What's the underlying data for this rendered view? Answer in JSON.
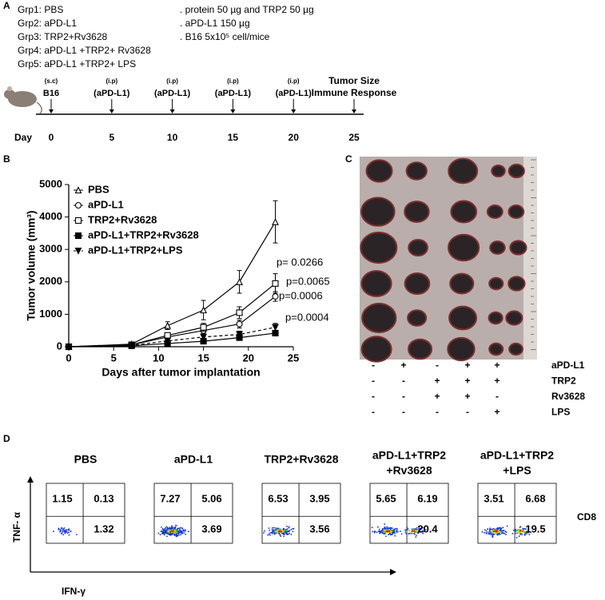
{
  "panel_a": {
    "label": "A",
    "groups": [
      "Grp1: PBS",
      "Grp2: aPD-L1",
      "Grp3: TRP2+Rv3628",
      "Grp4:  aPD-L1 +TRP2+ Rv3628",
      "Grp5:  aPD-L1 +TRP2+ LPS"
    ],
    "notes": [
      ". protein 50 µg and TRP2 50 µg",
      ". aPD-L1 150 µg",
      ". B16 5x10⁵ cell/mice"
    ],
    "timeline": {
      "axis_label": "Day",
      "days": [
        0,
        5,
        10,
        15,
        20,
        25
      ],
      "events": [
        {
          "route": "(s.c)",
          "agent": "B16"
        },
        {
          "route": "(i.p)",
          "agent": "(aPD-L1)"
        },
        {
          "route": "(i.p)",
          "agent": "(aPD-L1)"
        },
        {
          "route": "(i.p)",
          "agent": "(aPD-L1)"
        },
        {
          "route": "(i.p)",
          "agent": "(aPD-L1)"
        }
      ],
      "endpoints": [
        "Tumor Size",
        "Immune Response"
      ]
    }
  },
  "chart_data": {
    "type": "line",
    "label": "B",
    "x_label": "Days after tumor implantation",
    "y_label": "Tumor volume (mm³)",
    "xlim": [
      0,
      25
    ],
    "xticks": [
      0,
      5,
      10,
      15,
      20,
      25
    ],
    "ylim": [
      0,
      5000
    ],
    "yticks": [
      0,
      1000,
      2000,
      3000,
      4000,
      5000
    ],
    "x": [
      0,
      7,
      11,
      15,
      19,
      23
    ],
    "series": [
      {
        "name": "PBS",
        "color": "#000000",
        "marker": "open-triangle",
        "line_style": "solid",
        "values": [
          0,
          80,
          650,
          1130,
          2000,
          3850
        ],
        "errors": [
          null,
          null,
          120,
          300,
          350,
          650
        ]
      },
      {
        "name": "aPD-L1",
        "color": "#000000",
        "marker": "open-circle",
        "line_style": "solid",
        "values": [
          0,
          60,
          300,
          500,
          700,
          1550
        ],
        "errors": [
          null,
          null,
          50,
          100,
          120,
          150
        ]
      },
      {
        "name": "TRP2+Rv3628",
        "color": "#000000",
        "marker": "open-square",
        "line_style": "solid",
        "values": [
          0,
          60,
          350,
          600,
          1050,
          1950
        ],
        "errors": [
          null,
          null,
          60,
          120,
          180,
          300
        ]
      },
      {
        "name": "aPD-L1+TRP2+Rv3628",
        "color": "#000000",
        "marker": "filled-square",
        "line_style": "solid",
        "values": [
          0,
          30,
          100,
          170,
          280,
          420
        ],
        "errors": [
          null,
          null,
          30,
          40,
          50,
          80
        ]
      },
      {
        "name": "aPD-L1+TRP2+LPS",
        "color": "#000000",
        "marker": "filled-triangle-down",
        "line_style": "dashed",
        "values": [
          0,
          40,
          180,
          300,
          380,
          600
        ],
        "errors": [
          null,
          null,
          60,
          80,
          100,
          120
        ]
      }
    ],
    "annotations": [
      "p= 0.0266",
      "p=0.0065",
      "p=0.0006",
      "p=0.0004"
    ]
  },
  "panel_c": {
    "label": "C",
    "rows": [
      {
        "name": "aPD-L1",
        "signs": [
          "-",
          "+",
          "-",
          "+",
          "+"
        ]
      },
      {
        "name": "TRP2",
        "signs": [
          "-",
          "-",
          "+",
          "+",
          "+"
        ]
      },
      {
        "name": "Rv3628",
        "signs": [
          "-",
          "-",
          "+",
          "+",
          "-"
        ]
      },
      {
        "name": "LPS",
        "signs": [
          "-",
          "-",
          "-",
          "-",
          "+"
        ]
      }
    ]
  },
  "panel_d": {
    "label": "D",
    "y_label": "TNF- α",
    "x_label": "IFN-γ",
    "row_label": "CD8",
    "groups": [
      {
        "title": [
          "PBS"
        ],
        "top_left": 1.15,
        "top_right": 0.13,
        "bottom_right": 1.32
      },
      {
        "title": [
          "aPD-L1"
        ],
        "top_left": 7.27,
        "top_right": 5.06,
        "bottom_right": 3.69
      },
      {
        "title": [
          "TRP2+Rv3628"
        ],
        "top_left": 6.53,
        "top_right": 3.95,
        "bottom_right": 3.56
      },
      {
        "title": [
          "aPD-L1+TRP2",
          "+Rv3628"
        ],
        "top_left": 5.65,
        "top_right": 6.19,
        "bottom_right": 20.4
      },
      {
        "title": [
          "aPD-L1+TRP2",
          "+LPS"
        ],
        "top_left": 3.51,
        "top_right": 6.68,
        "bottom_right": 19.5
      }
    ]
  }
}
